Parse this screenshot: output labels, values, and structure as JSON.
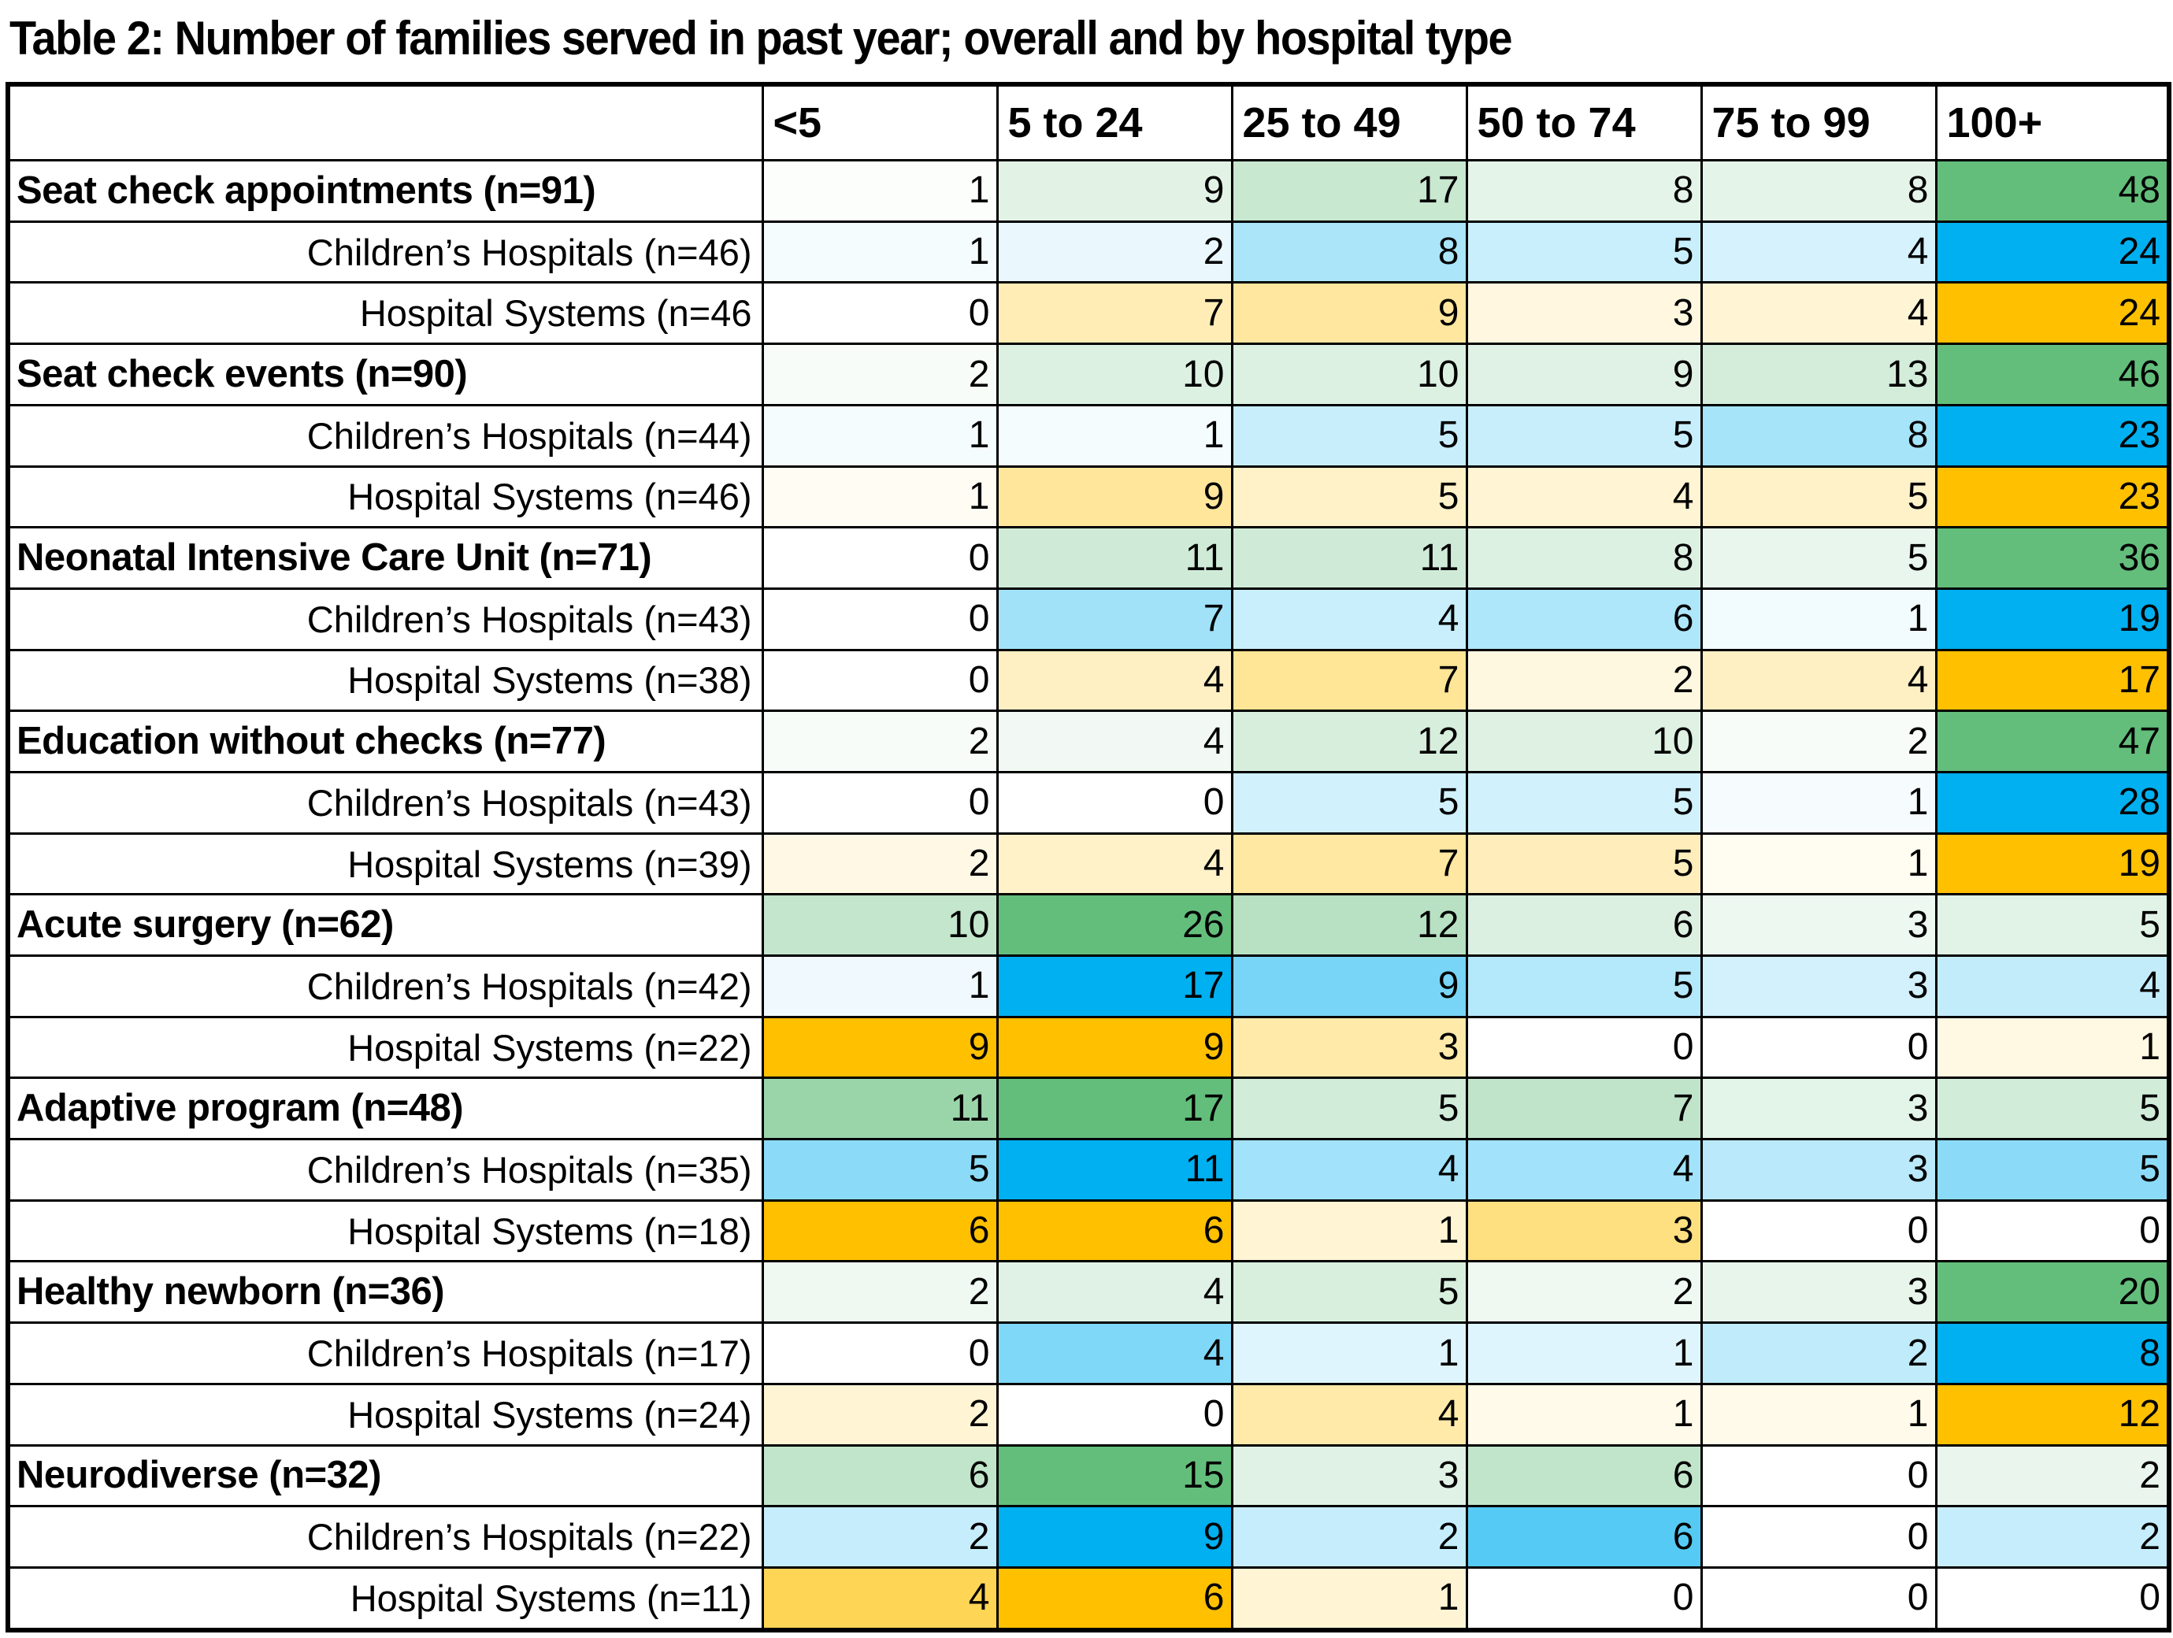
{
  "title": "Table 2: Number of families served in past year; overall and by hospital type",
  "columns": [
    "<5",
    "5 to 24",
    "25 to 49",
    "50 to 74",
    "75 to 99",
    "100+"
  ],
  "rows": [
    {
      "label": "Seat check appointments (n=91)",
      "type": "overall",
      "values": [
        1,
        9,
        17,
        8,
        8,
        48
      ]
    },
    {
      "label": "Children’s Hospitals (n=46)",
      "type": "children",
      "values": [
        1,
        2,
        8,
        5,
        4,
        24
      ]
    },
    {
      "label": "Hospital Systems (n=46",
      "type": "systems",
      "values": [
        0,
        7,
        9,
        3,
        4,
        24
      ]
    },
    {
      "label": "Seat check events (n=90)",
      "type": "overall",
      "values": [
        2,
        10,
        10,
        9,
        13,
        46
      ]
    },
    {
      "label": "Children’s Hospitals (n=44)",
      "type": "children",
      "values": [
        1,
        1,
        5,
        5,
        8,
        23
      ]
    },
    {
      "label": "Hospital Systems (n=46)",
      "type": "systems",
      "values": [
        1,
        9,
        5,
        4,
        5,
        23
      ]
    },
    {
      "label": "Neonatal Intensive Care Unit (n=71)",
      "type": "overall",
      "values": [
        0,
        11,
        11,
        8,
        5,
        36
      ]
    },
    {
      "label": "Children’s Hospitals (n=43)",
      "type": "children",
      "values": [
        0,
        7,
        4,
        6,
        1,
        19
      ]
    },
    {
      "label": "Hospital Systems (n=38)",
      "type": "systems",
      "values": [
        0,
        4,
        7,
        2,
        4,
        17
      ]
    },
    {
      "label": "Education without checks (n=77)",
      "type": "overall",
      "values": [
        2,
        4,
        12,
        10,
        2,
        47
      ]
    },
    {
      "label": "Children’s Hospitals (n=43)",
      "type": "children",
      "values": [
        0,
        0,
        5,
        5,
        1,
        28
      ]
    },
    {
      "label": "Hospital Systems (n=39)",
      "type": "systems",
      "values": [
        2,
        4,
        7,
        5,
        1,
        19
      ]
    },
    {
      "label": "Acute surgery (n=62)",
      "type": "overall",
      "values": [
        10,
        26,
        12,
        6,
        3,
        5
      ]
    },
    {
      "label": "Children’s Hospitals (n=42)",
      "type": "children",
      "values": [
        1,
        17,
        9,
        5,
        3,
        4
      ]
    },
    {
      "label": "Hospital Systems (n=22)",
      "type": "systems",
      "values": [
        9,
        9,
        3,
        0,
        0,
        1
      ]
    },
    {
      "label": "Adaptive program (n=48)",
      "type": "overall",
      "values": [
        11,
        17,
        5,
        7,
        3,
        5
      ]
    },
    {
      "label": "Children’s Hospitals (n=35)",
      "type": "children",
      "values": [
        5,
        11,
        4,
        4,
        3,
        5
      ]
    },
    {
      "label": "Hospital Systems (n=18)",
      "type": "systems",
      "values": [
        6,
        6,
        1,
        3,
        0,
        0
      ]
    },
    {
      "label": "Healthy newborn (n=36)",
      "type": "overall",
      "values": [
        2,
        4,
        5,
        2,
        3,
        20
      ]
    },
    {
      "label": "Children’s Hospitals (n=17)",
      "type": "children",
      "values": [
        0,
        4,
        1,
        1,
        2,
        8
      ]
    },
    {
      "label": "Hospital Systems (n=24)",
      "type": "systems",
      "values": [
        2,
        0,
        4,
        1,
        1,
        12
      ]
    },
    {
      "label": "Neurodiverse (n=32)",
      "type": "overall",
      "values": [
        6,
        15,
        3,
        6,
        0,
        2
      ]
    },
    {
      "label": "Children’s Hospitals (n=22)",
      "type": "children",
      "values": [
        2,
        9,
        2,
        6,
        0,
        2
      ]
    },
    {
      "label": "Hospital Systems (n=11)",
      "type": "systems",
      "values": [
        4,
        6,
        1,
        0,
        0,
        0
      ]
    }
  ],
  "heatmap_colors": {
    "overall": {
      "low": "#ffffff",
      "high": "#63be7b"
    },
    "children": {
      "low": "#ffffff",
      "high": "#00b0f0"
    },
    "systems": {
      "low": "#ffffff",
      "high": "#ffc000"
    }
  }
}
